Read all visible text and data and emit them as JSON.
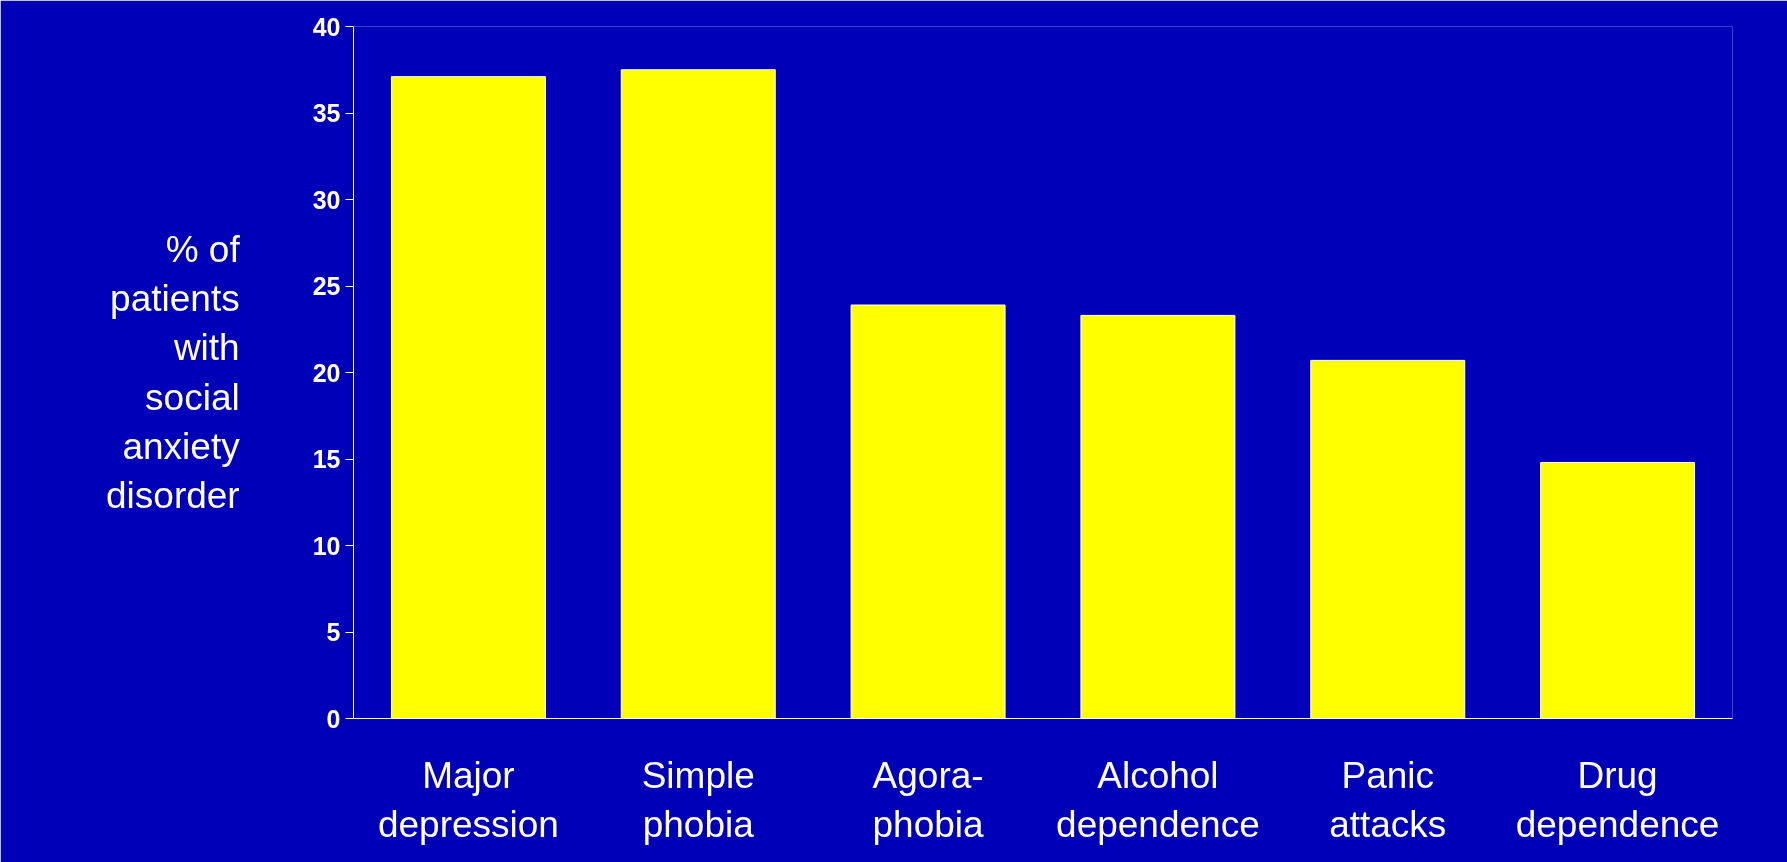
{
  "chart_data": {
    "type": "bar",
    "ylabel": "% of\npatients\nwith\nsocial\nanxiety\ndisorder",
    "categories": [
      "Major\ndepression",
      "Simple\nphobia",
      "Agora-\nphobia",
      "Alcohol\ndependence",
      "Panic\nattacks",
      "Drug\ndependence"
    ],
    "values": [
      37.1,
      37.5,
      23.9,
      23.3,
      20.7,
      14.8
    ],
    "color": "#ffff00",
    "ylim": [
      0,
      40
    ],
    "yticks": [
      0,
      5,
      10,
      15,
      20,
      25,
      30,
      35,
      40
    ],
    "grid": false
  }
}
